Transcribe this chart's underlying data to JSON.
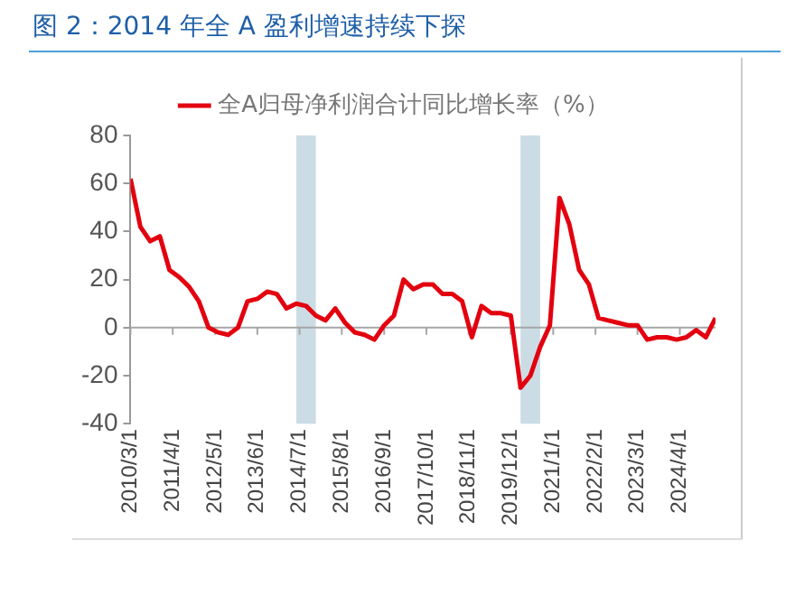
{
  "chart_data": {
    "type": "line",
    "title": "图 2：2014 年全 A 盈利增速持续下探",
    "x": [
      "2010-03",
      "2010-06",
      "2010-09",
      "2010-12",
      "2011-03",
      "2011-06",
      "2011-09",
      "2011-12",
      "2012-03",
      "2012-06",
      "2012-09",
      "2012-12",
      "2013-03",
      "2013-06",
      "2013-09",
      "2013-12",
      "2014-03",
      "2014-06",
      "2014-09",
      "2014-12",
      "2015-03",
      "2015-06",
      "2015-09",
      "2015-12",
      "2016-03",
      "2016-06",
      "2016-09",
      "2016-12",
      "2017-03",
      "2017-06",
      "2017-09",
      "2017-12",
      "2018-03",
      "2018-06",
      "2018-09",
      "2018-12",
      "2019-03",
      "2019-06",
      "2019-09",
      "2019-12",
      "2020-03",
      "2020-06",
      "2020-09",
      "2020-12",
      "2021-03",
      "2021-06",
      "2021-09",
      "2021-12",
      "2022-03",
      "2022-06",
      "2022-09",
      "2022-12",
      "2023-03",
      "2023-06",
      "2023-09",
      "2023-12",
      "2024-03",
      "2024-06",
      "2024-09",
      "2024-12",
      "2025-03"
    ],
    "series": [
      {
        "name": "全A归母净利润合计同比增长率（%）",
        "color": "#e3000f",
        "values": [
          62,
          42,
          36,
          38,
          24,
          21,
          17,
          11,
          0,
          -2,
          -3,
          0,
          11,
          12,
          15,
          14,
          8,
          10,
          9,
          5,
          3,
          8,
          2,
          -2,
          -3,
          -5,
          1,
          5,
          20,
          16,
          18,
          18,
          14,
          14,
          11,
          -4,
          9,
          6,
          6,
          5,
          -25,
          -20,
          -8,
          1,
          54,
          43,
          24,
          18,
          4,
          3,
          2,
          1,
          1,
          -5,
          -4,
          -4,
          -5,
          -4,
          -1,
          -4,
          4
        ]
      }
    ],
    "xlim": [
      "2010-03",
      "2025-03"
    ],
    "xticks": [
      {
        "value": "2010-03-01",
        "label": "2010/3/1"
      },
      {
        "value": "2011-04-01",
        "label": "2011/4/1"
      },
      {
        "value": "2012-05-01",
        "label": "2012/5/1"
      },
      {
        "value": "2013-06-01",
        "label": "2013/6/1"
      },
      {
        "value": "2014-07-01",
        "label": "2014/7/1"
      },
      {
        "value": "2015-08-01",
        "label": "2015/8/1"
      },
      {
        "value": "2016-09-01",
        "label": "2016/9/1"
      },
      {
        "value": "2017-10-01",
        "label": "2017/10/1"
      },
      {
        "value": "2018-11-01",
        "label": "2018/11/1"
      },
      {
        "value": "2019-12-01",
        "label": "2019/12/1"
      },
      {
        "value": "2021-01-01",
        "label": "2021/1/1"
      },
      {
        "value": "2022-02-01",
        "label": "2022/2/1"
      },
      {
        "value": "2023-03-01",
        "label": "2023/3/1"
      },
      {
        "value": "2024-04-01",
        "label": "2024/4/1"
      }
    ],
    "ylim": [
      -40,
      80
    ],
    "yticks": [
      -40,
      -20,
      0,
      20,
      40,
      60,
      80
    ],
    "ref_lines": [
      {
        "axis": "y",
        "value": 0,
        "color": "#a6a6a6"
      }
    ],
    "bands": [
      {
        "axis": "x",
        "from": "2014-06",
        "to": "2014-12",
        "color": "#ccdce5"
      },
      {
        "axis": "x",
        "from": "2020-03",
        "to": "2020-09",
        "color": "#ccdce5"
      }
    ],
    "grid": false,
    "legend": "top",
    "marker": "none",
    "line_style": "solid"
  }
}
